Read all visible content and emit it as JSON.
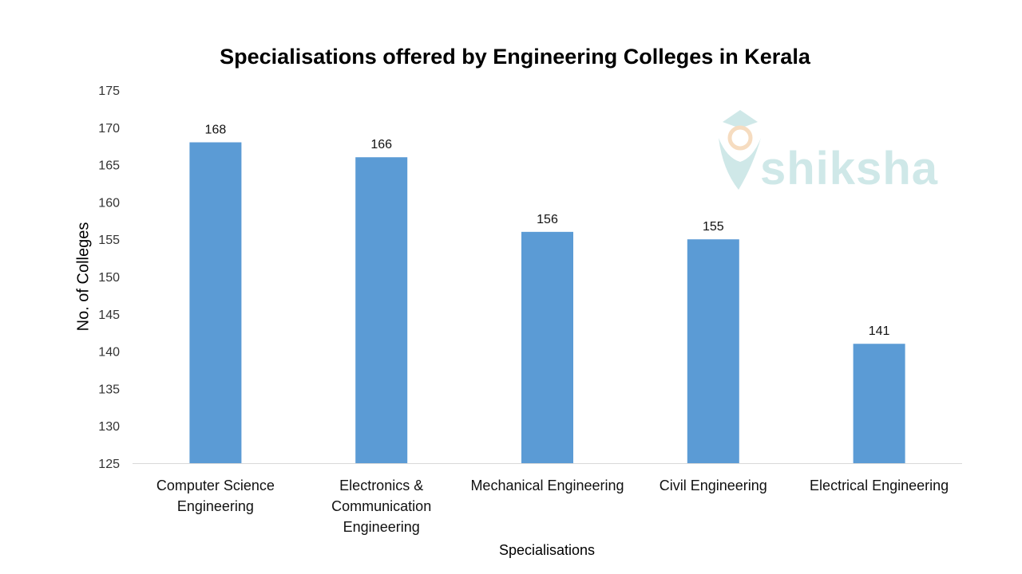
{
  "chart_data": {
    "type": "bar",
    "title": "Specialisations offered by Engineering Colleges in Kerala",
    "xlabel": "Specialisations",
    "ylabel": "No. of Colleges",
    "categories": [
      [
        "Computer Science",
        "Engineering"
      ],
      [
        "Electronics &",
        "Communication",
        "Engineering"
      ],
      [
        "Mechanical Engineering"
      ],
      [
        "Civil Engineering"
      ],
      [
        "Electrical Engineering"
      ]
    ],
    "values": [
      168,
      166,
      156,
      155,
      141
    ],
    "ylim": [
      125,
      175
    ],
    "yticks": [
      125,
      130,
      135,
      140,
      145,
      150,
      155,
      160,
      165,
      170,
      175
    ],
    "grid": false,
    "data_labels": true,
    "bar_color": "#5b9bd5"
  },
  "watermark": {
    "text": "shiksha",
    "color": "#cfe8e8"
  }
}
